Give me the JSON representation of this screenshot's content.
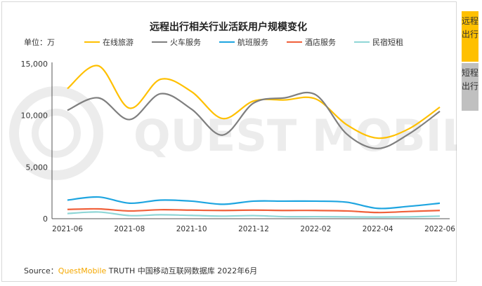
{
  "tabs": [
    {
      "label": "远程出行",
      "active": true,
      "color": "#ffc000"
    },
    {
      "label": "短程出行",
      "active": false,
      "color": "#c0c0c0"
    }
  ],
  "source": {
    "prefix": "Source：",
    "brand": "QuestMobile",
    "rest": " TRUTH 中国移动互联网数据库 2022年6月"
  },
  "watermark": "QUEST MOBILE",
  "chart_data": {
    "type": "line",
    "title": "远程出行相关行业活跃用户规模变化",
    "unit_label": "单位：万",
    "x": [
      "2021-06",
      "2021-07",
      "2021-08",
      "2021-09",
      "2021-10",
      "2021-11",
      "2021-12",
      "2022-01",
      "2022-02",
      "2022-03",
      "2022-04",
      "2022-05",
      "2022-06"
    ],
    "x_tick_labels": [
      "2021-06",
      "2021-08",
      "2021-10",
      "2021-12",
      "2022-02",
      "2022-04",
      "2022-06"
    ],
    "y_ticks": [
      "0",
      "5,000",
      "10,000",
      "15,000"
    ],
    "ylim": [
      0,
      15000
    ],
    "grid": false,
    "legend_position": "top",
    "series": [
      {
        "name": "在线旅游",
        "color": "#ffc000",
        "values": [
          12600,
          14800,
          10700,
          13500,
          12300,
          9700,
          11400,
          11500,
          11600,
          9100,
          7800,
          8700,
          10800
        ]
      },
      {
        "name": "火车服务",
        "color": "#7f7f7f",
        "values": [
          10500,
          11700,
          9600,
          12100,
          10600,
          8100,
          11200,
          11700,
          12000,
          8200,
          6800,
          8200,
          10400
        ]
      },
      {
        "name": "航班服务",
        "color": "#1ea5e0",
        "values": [
          1800,
          2100,
          1500,
          1800,
          1700,
          1400,
          1700,
          1700,
          1700,
          1600,
          1000,
          1200,
          1500
        ]
      },
      {
        "name": "酒店服务",
        "color": "#f0603a",
        "values": [
          900,
          950,
          750,
          870,
          830,
          800,
          830,
          800,
          800,
          750,
          600,
          700,
          800
        ]
      },
      {
        "name": "民宿短租",
        "color": "#8fd6d6",
        "values": [
          500,
          650,
          300,
          380,
          320,
          250,
          300,
          200,
          200,
          180,
          160,
          180,
          250
        ]
      }
    ]
  }
}
